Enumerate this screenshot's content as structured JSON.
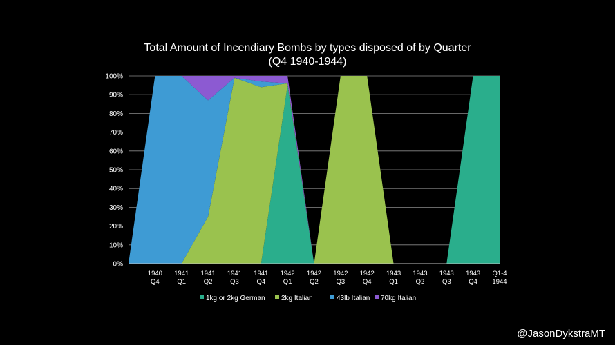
{
  "chart_data": {
    "type": "area",
    "stacked": true,
    "title": "Total Amount of Incendiary Bombs by types disposed of by Quarter",
    "subtitle": "(Q4 1940-1944)",
    "categories": [
      [
        "",
        ""
      ],
      [
        "1940",
        "Q4"
      ],
      [
        "1941",
        "Q1"
      ],
      [
        "1941",
        "Q2"
      ],
      [
        "1941",
        "Q3"
      ],
      [
        "1941",
        "Q4"
      ],
      [
        "1942",
        "Q1"
      ],
      [
        "1942",
        "Q2"
      ],
      [
        "1942",
        "Q3"
      ],
      [
        "1942",
        "Q4"
      ],
      [
        "1943",
        "Q1"
      ],
      [
        "1943",
        "Q2"
      ],
      [
        "1943",
        "Q3"
      ],
      [
        "1943",
        "Q4"
      ],
      [
        "Q1-4",
        "1944"
      ]
    ],
    "y_ticks": [
      "0%",
      "10%",
      "20%",
      "30%",
      "40%",
      "50%",
      "60%",
      "70%",
      "80%",
      "90%",
      "100%"
    ],
    "ylim": [
      0,
      100
    ],
    "grid": true,
    "legend_position": "bottom",
    "series": [
      {
        "name": "1kg or 2kg German",
        "color": "#2aae8c",
        "values": [
          0,
          0,
          0,
          0,
          0,
          0,
          95,
          0,
          0,
          0,
          0,
          0,
          0,
          100,
          100
        ]
      },
      {
        "name": "2kg Italian",
        "color": "#9ac24e",
        "values": [
          0,
          0,
          0,
          25,
          99,
          94,
          1,
          0,
          100,
          100,
          0,
          0,
          0,
          0,
          0
        ]
      },
      {
        "name": "43lb Italian",
        "color": "#3e9bd4",
        "values": [
          0,
          100,
          100,
          62,
          0,
          3,
          0,
          0,
          0,
          0,
          0,
          0,
          0,
          0,
          0
        ]
      },
      {
        "name": "70kg Italian",
        "color": "#8c5ad2",
        "values": [
          0,
          0,
          0,
          13,
          1,
          3,
          4,
          0,
          0,
          0,
          0,
          0,
          0,
          0,
          0
        ]
      }
    ]
  },
  "credit": "@JasonDykstraMT"
}
